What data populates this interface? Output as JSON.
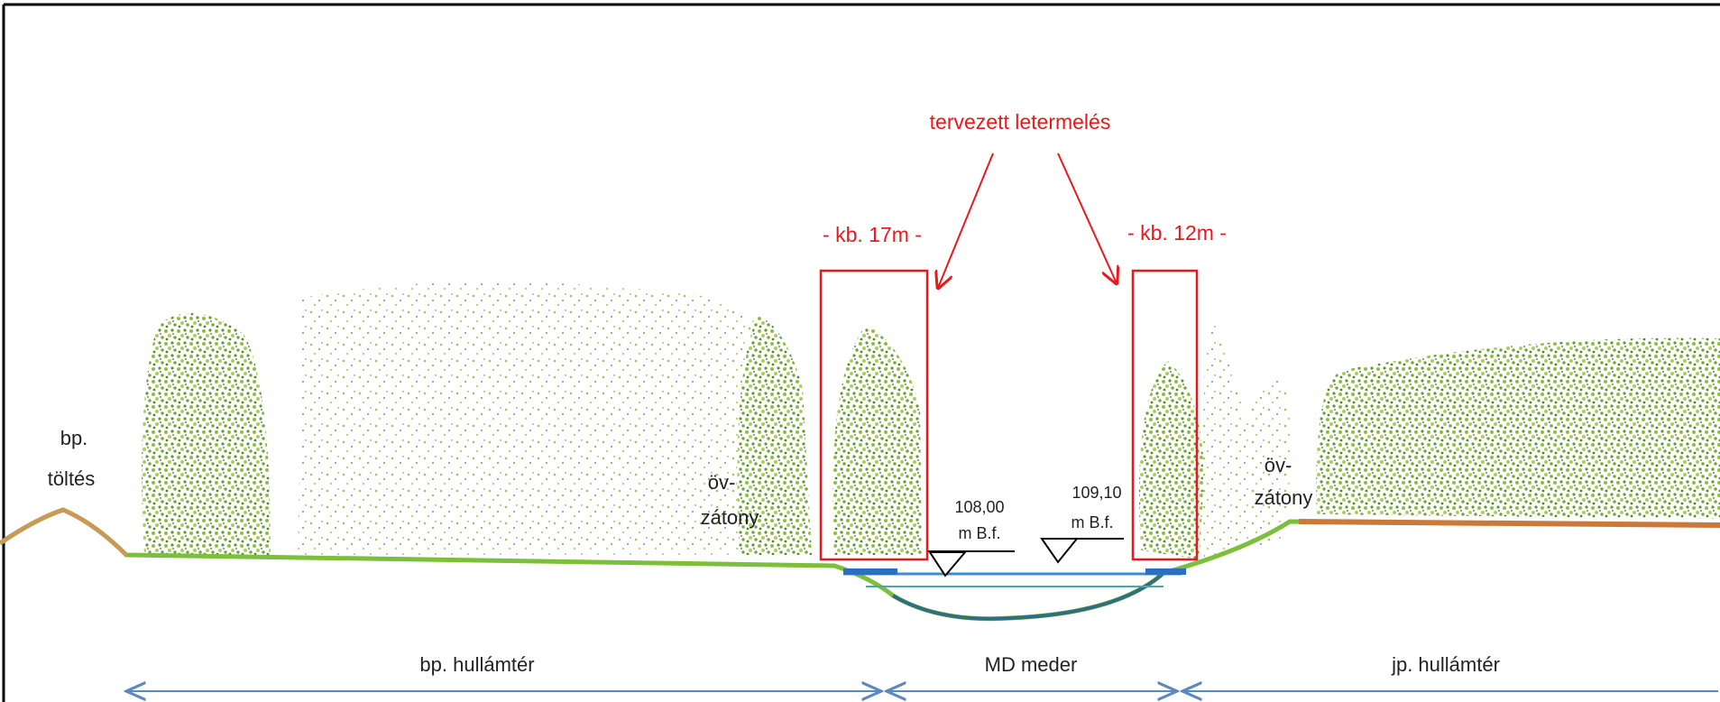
{
  "annotation": {
    "title": "tervezett letermelés",
    "left_width": "- kb. 17m -",
    "right_width": "- kb. 12m -"
  },
  "labels": {
    "embankment": [
      "bp.",
      "töltés"
    ],
    "left_bar": [
      "öv-",
      "zátony"
    ],
    "right_bar": [
      "öv-",
      "zátony"
    ]
  },
  "water_levels": [
    {
      "value": "108,00",
      "unit": "m B.f."
    },
    {
      "value": "109,10",
      "unit": "m B.f."
    }
  ],
  "zones": [
    "bp. hullámtér",
    "MD meder",
    "jp. hullámtér"
  ]
}
